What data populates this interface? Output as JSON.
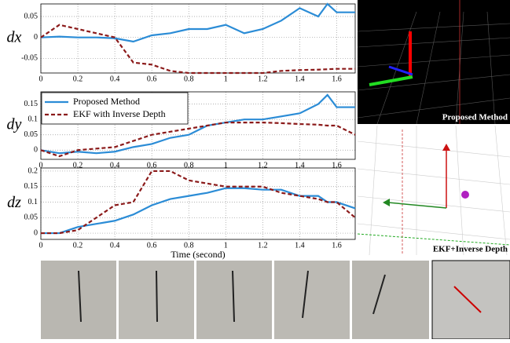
{
  "chart_data": [
    {
      "type": "line",
      "ylabel": "dx",
      "xlim": [
        0,
        1.7
      ],
      "ylim": [
        -0.085,
        0.08
      ],
      "xticks": [
        0,
        0.2,
        0.4,
        0.6,
        0.8,
        1,
        1.2,
        1.4,
        1.6
      ],
      "yticks": [
        -0.05,
        0,
        0.05
      ],
      "grid": true,
      "x": [
        0,
        0.1,
        0.2,
        0.3,
        0.4,
        0.5,
        0.6,
        0.7,
        0.8,
        0.9,
        1.0,
        1.1,
        1.2,
        1.3,
        1.4,
        1.5,
        1.55,
        1.6,
        1.7
      ],
      "series": [
        {
          "color": "#2b8cd6",
          "style": "solid",
          "values": [
            0,
            0.002,
            0,
            0,
            -0.002,
            -0.01,
            0.005,
            0.01,
            0.02,
            0.02,
            0.03,
            0.01,
            0.02,
            0.04,
            0.07,
            0.05,
            0.08,
            0.06,
            0.06
          ]
        },
        {
          "color": "#8b1a1a",
          "style": "dashed",
          "values": [
            0,
            0.03,
            0.02,
            0.01,
            0,
            -0.06,
            -0.065,
            -0.08,
            -0.085,
            -0.085,
            -0.085,
            -0.085,
            -0.085,
            -0.08,
            -0.078,
            -0.077,
            -0.076,
            -0.075,
            -0.075
          ]
        }
      ]
    },
    {
      "type": "line",
      "ylabel": "dy",
      "xlim": [
        0,
        1.7
      ],
      "ylim": [
        -0.03,
        0.19
      ],
      "xticks": [
        0,
        0.2,
        0.4,
        0.6,
        0.8,
        1,
        1.2,
        1.4,
        1.6
      ],
      "yticks": [
        0,
        0.05,
        0.1,
        0.15
      ],
      "grid": true,
      "legend": "upper left",
      "x": [
        0,
        0.1,
        0.2,
        0.3,
        0.4,
        0.5,
        0.6,
        0.7,
        0.8,
        0.9,
        1.0,
        1.1,
        1.2,
        1.3,
        1.4,
        1.5,
        1.55,
        1.6,
        1.7
      ],
      "series": [
        {
          "name": "Proposed Method",
          "color": "#2b8cd6",
          "style": "solid",
          "values": [
            0,
            -0.01,
            -0.005,
            -0.01,
            -0.005,
            0.01,
            0.02,
            0.04,
            0.05,
            0.08,
            0.09,
            0.1,
            0.1,
            0.11,
            0.12,
            0.15,
            0.18,
            0.14,
            0.14
          ]
        },
        {
          "name": "EKF with Inverse Depth",
          "color": "#8b1a1a",
          "style": "dashed",
          "values": [
            0,
            -0.02,
            0,
            0.005,
            0.01,
            0.03,
            0.05,
            0.06,
            0.07,
            0.08,
            0.09,
            0.09,
            0.09,
            0.088,
            0.085,
            0.083,
            0.08,
            0.08,
            0.05
          ]
        }
      ]
    },
    {
      "type": "line",
      "ylabel": "dz",
      "xlabel": "Time (second)",
      "xlim": [
        0,
        1.7
      ],
      "ylim": [
        -0.02,
        0.21
      ],
      "xticks": [
        0,
        0.2,
        0.4,
        0.6,
        0.8,
        1,
        1.2,
        1.4,
        1.6
      ],
      "yticks": [
        0,
        0.05,
        0.1,
        0.15,
        0.2
      ],
      "grid": true,
      "x": [
        0,
        0.1,
        0.2,
        0.3,
        0.4,
        0.5,
        0.6,
        0.7,
        0.8,
        0.9,
        1.0,
        1.1,
        1.2,
        1.3,
        1.4,
        1.5,
        1.55,
        1.6,
        1.7
      ],
      "series": [
        {
          "color": "#2b8cd6",
          "style": "solid",
          "values": [
            0,
            0,
            0.02,
            0.03,
            0.04,
            0.06,
            0.09,
            0.11,
            0.12,
            0.13,
            0.145,
            0.145,
            0.14,
            0.14,
            0.12,
            0.12,
            0.1,
            0.1,
            0.08
          ]
        },
        {
          "color": "#8b1a1a",
          "style": "dashed",
          "values": [
            0,
            0,
            0.01,
            0.05,
            0.09,
            0.1,
            0.2,
            0.2,
            0.17,
            0.16,
            0.15,
            0.15,
            0.15,
            0.13,
            0.12,
            0.11,
            0.1,
            0.1,
            0.05
          ]
        }
      ]
    }
  ],
  "renders": [
    {
      "caption": "Proposed Method"
    },
    {
      "caption": "EKF+Inverse Depth"
    }
  ]
}
